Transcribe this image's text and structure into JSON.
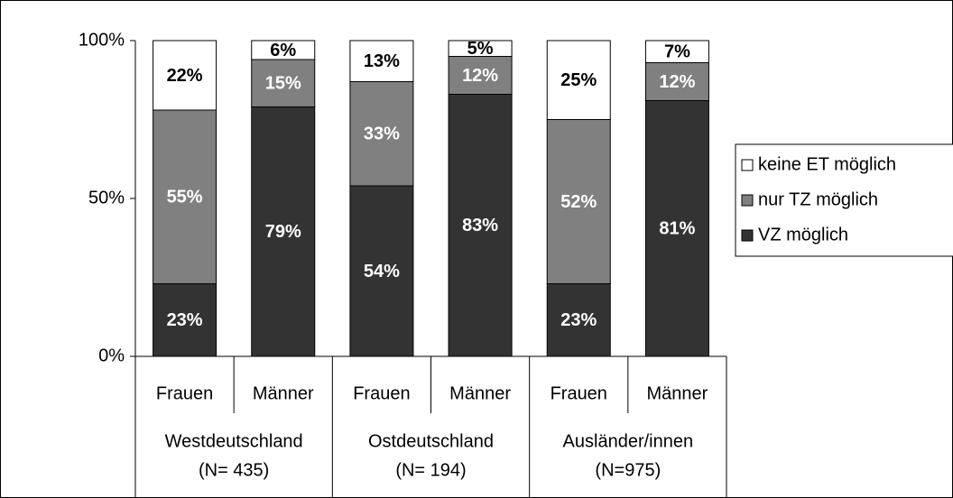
{
  "chart_data": {
    "type": "stacked-bar",
    "categories": [
      "Frauen",
      "Männer",
      "Frauen",
      "Männer",
      "Frauen",
      "Männer"
    ],
    "groups": [
      [
        "Westdeutschland",
        "(N= 435)"
      ],
      [
        "Ostdeutschland",
        "(N= 194)"
      ],
      [
        "Ausländer/innen",
        "(N=975)"
      ]
    ],
    "series": [
      {
        "name": "VZ möglich",
        "color": "#333333",
        "label_color": "#ffffff",
        "values": [
          23,
          79,
          54,
          83,
          23,
          81
        ],
        "value_labels": [
          "23%",
          "79%",
          "54%",
          "83%",
          "23%",
          "81%"
        ]
      },
      {
        "name": "nur TZ möglich",
        "color": "#808080",
        "label_color": "#ffffff",
        "values": [
          55,
          15,
          33,
          12,
          52,
          12
        ],
        "value_labels": [
          "55%",
          "15%",
          "33%",
          "12%",
          "52%",
          "12%"
        ]
      },
      {
        "name": "keine ET möglich",
        "color": "#ffffff",
        "label_color": "#000000",
        "values": [
          22,
          6,
          13,
          5,
          25,
          7
        ],
        "value_labels": [
          "22%",
          "6%",
          "13%",
          "5%",
          "25%",
          "7%"
        ]
      }
    ],
    "ylim": [
      0,
      100
    ],
    "yticks": [
      {
        "value": 0,
        "label": "0%"
      },
      {
        "value": 50,
        "label": "50%"
      },
      {
        "value": 100,
        "label": "100%"
      }
    ],
    "legend": "right"
  }
}
